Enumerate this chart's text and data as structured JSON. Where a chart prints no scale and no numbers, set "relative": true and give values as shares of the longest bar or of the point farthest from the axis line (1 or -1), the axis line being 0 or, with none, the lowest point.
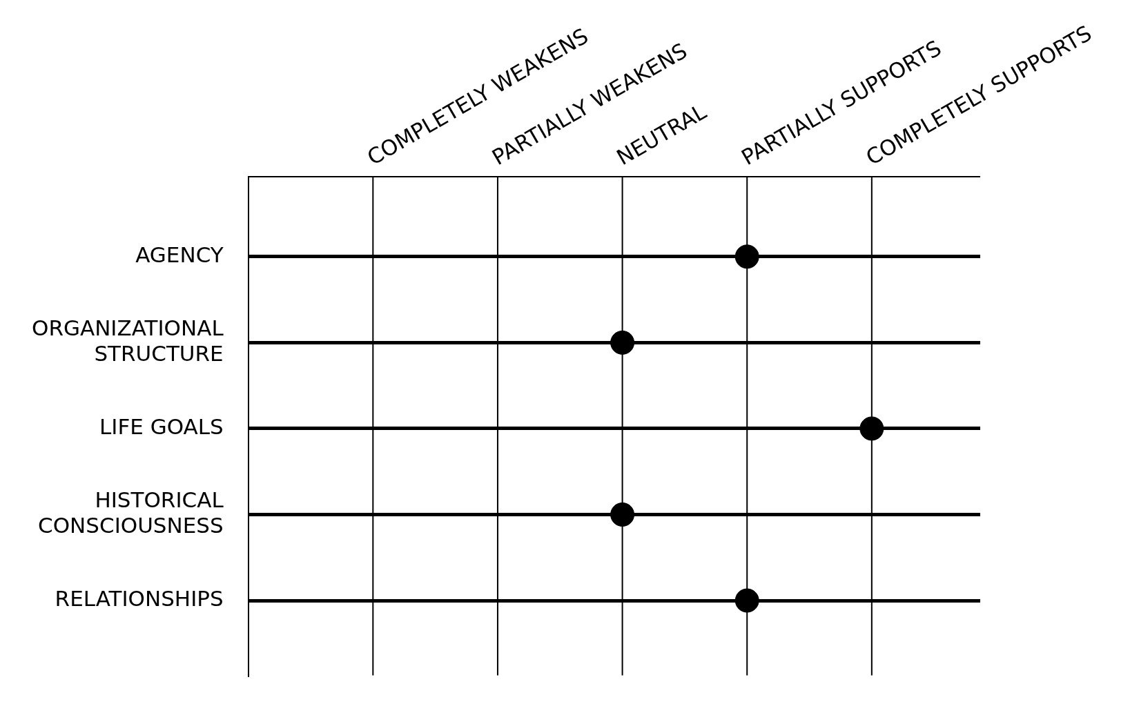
{
  "chart_data": {
    "type": "scatter",
    "orientation": "horizontal",
    "relative": true,
    "categories": [
      "AGENCY",
      "ORGANIZATIONAL STRUCTURE",
      "LIFE GOALS",
      "HISTORICAL CONSCIOUSNESS",
      "RELATIONSHIPS"
    ],
    "values": [
      0.8,
      0.6,
      1,
      0.6,
      0.8
    ],
    "color": "#000000",
    "marker": "circle",
    "grid": "y",
    "ref_lines": [
      {
        "axis": "x",
        "value": 0.2,
        "label": "COMPLETELY WEAKENS"
      },
      {
        "axis": "x",
        "value": 0.4,
        "label": "PARTIALLY WEAKENS"
      },
      {
        "axis": "x",
        "value": 0.6,
        "label": "NEUTRAL"
      },
      {
        "axis": "x",
        "value": 0.8,
        "label": "PARTIALLY SUPPORTS"
      },
      {
        "axis": "x",
        "value": 1,
        "label": "COMPLETELY SUPPORTS"
      }
    ]
  }
}
